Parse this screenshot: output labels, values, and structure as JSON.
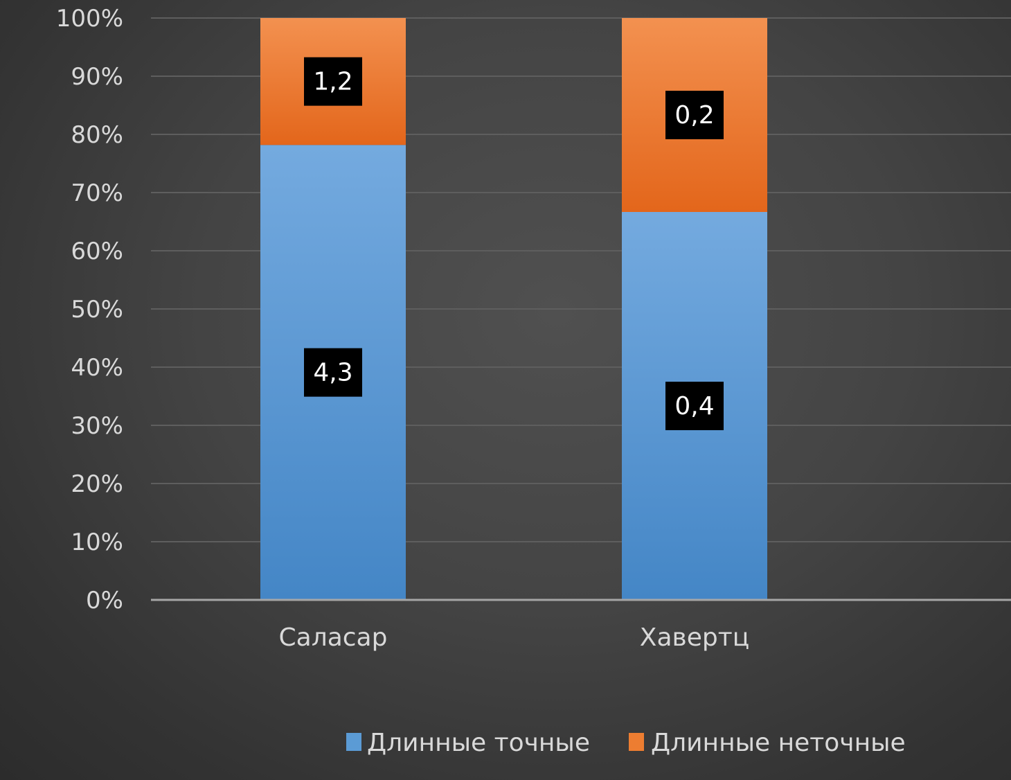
{
  "chart_data": {
    "type": "bar",
    "stacked": "percent",
    "categories": [
      "Саласар",
      "Хавертц"
    ],
    "series": [
      {
        "name": "Длинные точные",
        "values": [
          4.3,
          0.4
        ],
        "labels": [
          "4,3",
          "0,4"
        ],
        "color": "#5b9bd5"
      },
      {
        "name": "Длинные неточные",
        "values": [
          1.2,
          0.2
        ],
        "labels": [
          "1,2",
          "0,2"
        ],
        "color": "#ed7d31"
      }
    ],
    "yticks": [
      "0%",
      "10%",
      "20%",
      "30%",
      "40%",
      "50%",
      "60%",
      "70%",
      "80%",
      "90%",
      "100%"
    ],
    "ylim": [
      0,
      100
    ],
    "grid": true,
    "legend": "bottom"
  }
}
